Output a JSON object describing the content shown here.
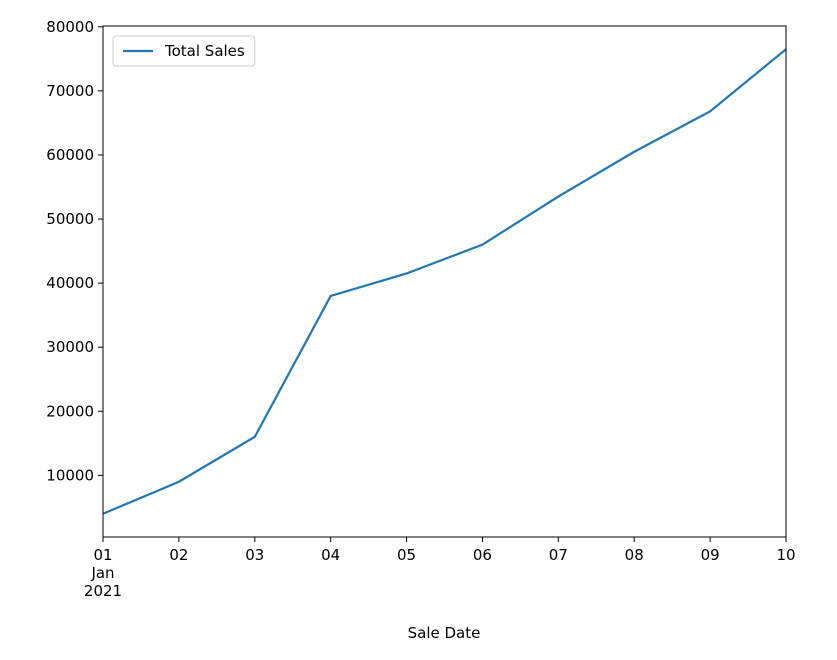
{
  "chart_data": {
    "type": "line",
    "x": [
      "2021-01-01",
      "2021-01-02",
      "2021-01-03",
      "2021-01-04",
      "2021-01-05",
      "2021-01-06",
      "2021-01-07",
      "2021-01-08",
      "2021-01-09",
      "2021-01-10"
    ],
    "series": [
      {
        "name": "Total Sales",
        "color": "#1f77b4",
        "values": [
          4000,
          9000,
          16000,
          38000,
          41500,
          46000,
          53500,
          60500,
          66800,
          76500
        ]
      }
    ],
    "xlabel": "Sale Date",
    "xlim": [
      "2021-01-01",
      "2021-01-10"
    ],
    "xticks": [
      {
        "value": "2021-01-01",
        "label": "01\nJan\n2021"
      },
      {
        "value": "2021-01-02",
        "label": "02"
      },
      {
        "value": "2021-01-03",
        "label": "03"
      },
      {
        "value": "2021-01-04",
        "label": "04"
      },
      {
        "value": "2021-01-05",
        "label": "05"
      },
      {
        "value": "2021-01-06",
        "label": "06"
      },
      {
        "value": "2021-01-07",
        "label": "07"
      },
      {
        "value": "2021-01-08",
        "label": "08"
      },
      {
        "value": "2021-01-09",
        "label": "09"
      },
      {
        "value": "2021-01-10",
        "label": "10"
      }
    ],
    "ylim": [
      375,
      80125
    ],
    "yticks": [
      10000,
      20000,
      30000,
      40000,
      50000,
      60000,
      70000,
      80000
    ],
    "grid": false,
    "legend": "upper-left"
  }
}
